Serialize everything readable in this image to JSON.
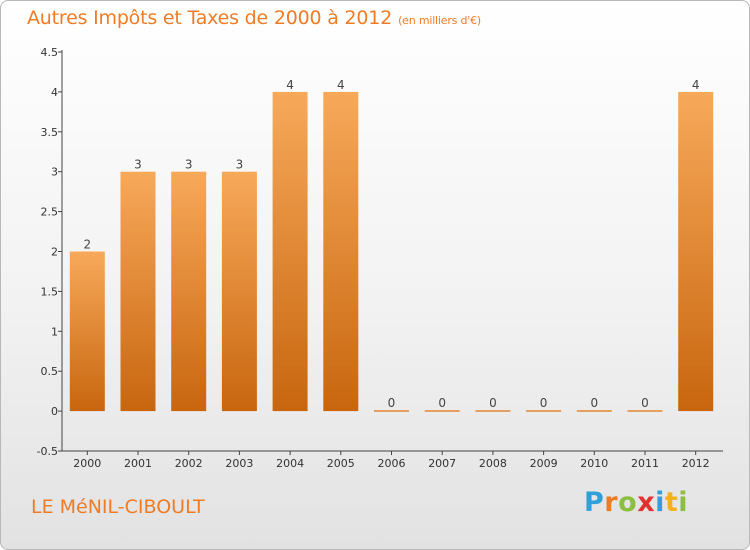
{
  "title": "Autres Impôts et Taxes de 2000 à 2012",
  "subtitle": "(en milliers d'€)",
  "commune": "LE MéNIL-CIBOULT",
  "logo": {
    "text": "Proxiti",
    "letter_colors": [
      "#2fa1d8",
      "#ee7c27",
      "#8cbf3f",
      "#e2312e",
      "#2fa1d8",
      "#f3b21b",
      "#8cbf3f"
    ]
  },
  "colors": {
    "bar_top": "#f7a95a",
    "bar_bottom": "#c8660f",
    "text": "#ee7c27",
    "axis": "#444444"
  },
  "chart_data": {
    "type": "bar",
    "categories": [
      "2000",
      "2001",
      "2002",
      "2003",
      "2004",
      "2005",
      "2006",
      "2007",
      "2008",
      "2009",
      "2010",
      "2011",
      "2012"
    ],
    "values": [
      2,
      3,
      3,
      3,
      4,
      4,
      0,
      0,
      0,
      0,
      0,
      0,
      4
    ],
    "data_labels": [
      "2",
      "3",
      "3",
      "3",
      "4",
      "4",
      "0",
      "0",
      "0",
      "0",
      "0",
      "0",
      "4"
    ],
    "y_ticks": [
      "-0.5",
      "0",
      "0.5",
      "1",
      "1.5",
      "2",
      "2.5",
      "3",
      "3.5",
      "4",
      "4.5"
    ],
    "ylim": [
      -0.5,
      4.5
    ],
    "grid": false,
    "title": "Autres Impôts et Taxes de 2000 à 2012",
    "xlabel": "",
    "ylabel": ""
  }
}
